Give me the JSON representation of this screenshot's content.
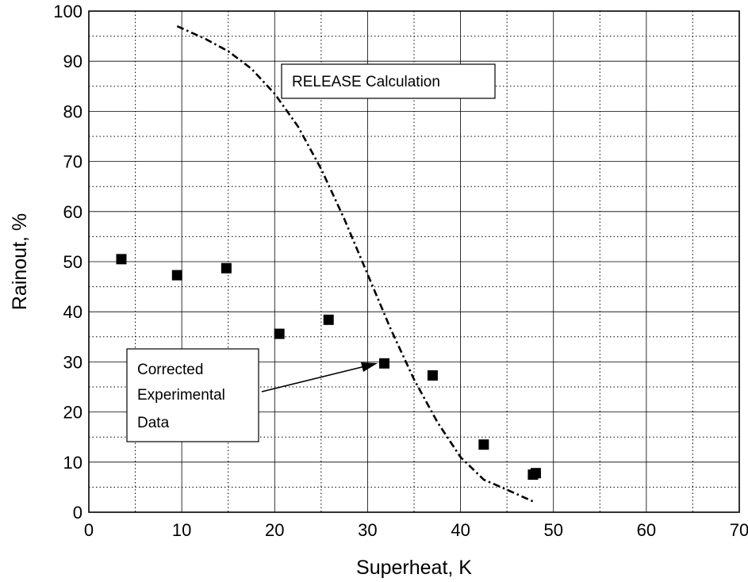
{
  "chart_data": {
    "type": "scatter",
    "title": "",
    "xlabel": "Superheat, K",
    "ylabel": "Rainout, %",
    "xlim": [
      0,
      70
    ],
    "ylim": [
      0,
      100
    ],
    "x_ticks": [
      "0",
      "10",
      "20",
      "30",
      "40",
      "50",
      "60",
      "70"
    ],
    "y_ticks": [
      "0",
      "10",
      "20",
      "30",
      "40",
      "50",
      "60",
      "70",
      "80",
      "90",
      "100"
    ],
    "grid": true,
    "series": [
      {
        "kind": "markers",
        "marker": "square",
        "points": [
          {
            "x": 3.5,
            "y": 50.5
          },
          {
            "x": 9.5,
            "y": 47.3
          },
          {
            "x": 14.8,
            "y": 48.7
          },
          {
            "x": 20.5,
            "y": 35.6
          },
          {
            "x": 25.8,
            "y": 38.4
          },
          {
            "x": 31.8,
            "y": 29.7
          },
          {
            "x": 37.0,
            "y": 27.3
          },
          {
            "x": 42.5,
            "y": 13.5
          },
          {
            "x": 47.8,
            "y": 7.5
          },
          {
            "x": 48.1,
            "y": 7.8
          }
        ]
      },
      {
        "kind": "line",
        "style": "dash-dot",
        "points": [
          {
            "x": 9.5,
            "y": 97
          },
          {
            "x": 12.5,
            "y": 94.5
          },
          {
            "x": 15,
            "y": 92
          },
          {
            "x": 17.5,
            "y": 88.5
          },
          {
            "x": 20,
            "y": 83.5
          },
          {
            "x": 22.5,
            "y": 77
          },
          {
            "x": 25,
            "y": 68.5
          },
          {
            "x": 27.5,
            "y": 58.5
          },
          {
            "x": 30,
            "y": 47.5
          },
          {
            "x": 32.5,
            "y": 36.5
          },
          {
            "x": 35,
            "y": 26.5
          },
          {
            "x": 37.5,
            "y": 18
          },
          {
            "x": 40,
            "y": 11
          },
          {
            "x": 42.5,
            "y": 6.5
          },
          {
            "x": 45,
            "y": 4.5
          },
          {
            "x": 48,
            "y": 2
          }
        ]
      }
    ],
    "annotations": [
      {
        "lines": [
          "RELEASE Calculation"
        ]
      },
      {
        "lines": [
          "Corrected",
          "Experimental",
          "Data"
        ],
        "arrow_to": {
          "x": 31.5,
          "y": 29.7
        }
      }
    ]
  }
}
